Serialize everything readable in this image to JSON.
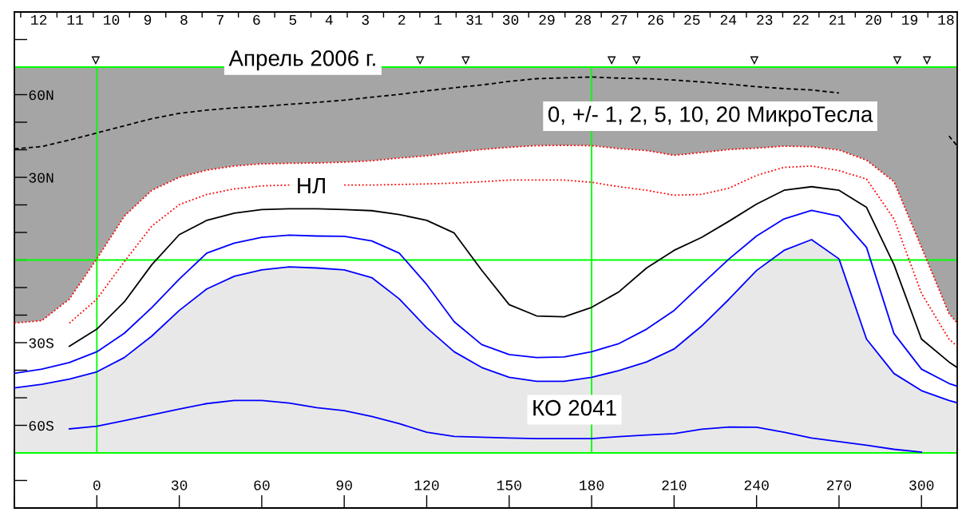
{
  "chart_data": {
    "type": "line",
    "title": "Апрель 2006 г.",
    "subtitle": "0, +/- 1, 2, 5, 10, 20 МикроТесла",
    "annotations": [
      "НЛ",
      "КО 2041"
    ],
    "x": [
      -30,
      -20,
      -10,
      0,
      10,
      20,
      30,
      40,
      50,
      60,
      70,
      80,
      90,
      100,
      110,
      120,
      130,
      140,
      150,
      160,
      170,
      180,
      190,
      200,
      210,
      220,
      230,
      240,
      250,
      260,
      270,
      280,
      290,
      300,
      310,
      313
    ],
    "series": [
      {
        "color": "#000000",
        "line_style": "dashed",
        "values": [
          40.3,
          41.2,
          43.5,
          46.1,
          48.7,
          51.3,
          53.2,
          54.4,
          55.2,
          55.7,
          56.5,
          57.2,
          58.0,
          59.1,
          60.1,
          61.4,
          62.5,
          63.5,
          64.8,
          65.8,
          66.1,
          66.4,
          66.0,
          65.8,
          65.3,
          64.6,
          63.8,
          62.9,
          62.2,
          61.7,
          60.6,
          null,
          null,
          null,
          45.0,
          41.4
        ]
      },
      {
        "color": "#ff0000",
        "line_style": "dotted",
        "values": [
          -22.9,
          -22.0,
          -14.2,
          0.4,
          15.9,
          25.3,
          30.0,
          32.6,
          34.1,
          34.9,
          35.1,
          35.2,
          35.5,
          36.0,
          37.0,
          37.8,
          39.0,
          40.1,
          40.9,
          41.5,
          41.6,
          41.5,
          40.4,
          39.7,
          38.0,
          39.0,
          40.1,
          40.6,
          41.3,
          41.1,
          39.9,
          36.2,
          28.4,
          4.6,
          -19.4,
          -22.9
        ]
      },
      {
        "color": "#ff0000",
        "line_style": "dotted",
        "values": [
          null,
          null,
          -22.9,
          -14.2,
          -0.6,
          12.3,
          20.1,
          23.8,
          25.8,
          26.9,
          27.2,
          null,
          27.2,
          27.2,
          27.4,
          27.6,
          27.9,
          28.4,
          29.0,
          29.0,
          29.0,
          28.2,
          26.6,
          25.3,
          23.5,
          23.8,
          26.1,
          30.7,
          33.6,
          34.1,
          32.4,
          29.4,
          14.9,
          -12.1,
          -28.7,
          -31.3
        ]
      },
      {
        "color": "#000000",
        "line_style": "solid",
        "values": [
          null,
          null,
          -31.3,
          -25.1,
          -15.2,
          -1.7,
          9.2,
          14.4,
          17.0,
          18.3,
          18.6,
          18.6,
          18.3,
          17.9,
          16.5,
          14.4,
          9.8,
          -3.7,
          -16.2,
          -20.3,
          -20.6,
          -17.2,
          -11.5,
          -2.9,
          3.5,
          8.2,
          14.1,
          20.3,
          25.3,
          26.6,
          25.3,
          19.1,
          -1.7,
          -28.7,
          -37.0,
          -39.0
        ]
      },
      {
        "color": "#0000ff",
        "line_style": "solid",
        "values": [
          -41.1,
          -39.6,
          -37.2,
          -33.3,
          -26.6,
          -17.3,
          -6.9,
          2.5,
          6.1,
          8.2,
          9.0,
          8.7,
          8.6,
          6.9,
          2.5,
          -8.9,
          -22.4,
          -30.7,
          -34.3,
          -35.4,
          -35.2,
          -33.3,
          -30.3,
          -25.1,
          -18.3,
          -8.9,
          0.4,
          8.7,
          14.9,
          18.0,
          15.9,
          4.6,
          -26.7,
          -39.6,
          -44.8,
          -45.8
        ]
      },
      {
        "color": "#0000ff",
        "line_style": "solid",
        "values": [
          -46.4,
          -45.1,
          -43.2,
          -40.6,
          -35.4,
          -27.6,
          -18.3,
          -10.5,
          -5.9,
          -3.6,
          -2.5,
          -2.9,
          -3.6,
          -6.4,
          -14.1,
          -24.6,
          -33.3,
          -39.0,
          -42.6,
          -44.0,
          -44.0,
          -42.6,
          -40.1,
          -37.0,
          -32.3,
          -24.0,
          -14.2,
          -3.8,
          3.5,
          7.4,
          0.4,
          -28.7,
          -41.2,
          -47.4,
          -51.0,
          -51.8
        ]
      },
      {
        "color": "#0000ff",
        "line_style": "solid",
        "values": [
          null,
          null,
          -61.3,
          -60.3,
          -58.3,
          -56.2,
          -54.1,
          -52.1,
          -51.0,
          -51.0,
          -51.9,
          -53.6,
          -54.7,
          -56.8,
          -59.4,
          -62.5,
          -64.0,
          -64.3,
          -64.6,
          -64.8,
          -64.8,
          -64.8,
          -64.1,
          -63.5,
          -63.0,
          -61.4,
          -60.6,
          -60.7,
          -62.5,
          -64.6,
          -65.9,
          -67.2,
          -68.7,
          -69.7,
          null,
          null
        ]
      },
      {
        "type": "scatter",
        "color": "#000000",
        "marker": "triangle",
        "x": [
          -0.4,
          117.6,
          134.2,
          187.3,
          196.3,
          239.2,
          291.2,
          302.0
        ],
        "values": [
          72.5,
          72.5,
          72.5,
          72.5,
          72.5,
          72.5,
          72.5,
          72.5
        ]
      }
    ],
    "ref_lines": [
      {
        "axis": "y",
        "value": 70,
        "color": "#00ff00"
      },
      {
        "axis": "y",
        "value": 0,
        "color": "#00ff00"
      },
      {
        "axis": "y",
        "value": -70,
        "color": "#00ff00"
      },
      {
        "axis": "x",
        "value": 0,
        "color": "#00ff00"
      },
      {
        "axis": "x",
        "value": 180,
        "color": "#00ff00"
      }
    ],
    "xlim": [
      -30,
      313
    ],
    "ylim": [
      -90,
      90
    ],
    "xticks": [
      {
        "value": -30,
        "label": null
      },
      0,
      30,
      60,
      90,
      120,
      150,
      180,
      210,
      240,
      270,
      300
    ],
    "yticks": [
      {
        "value": -80,
        "label": null
      },
      {
        "value": -70,
        "label": null
      },
      {
        "value": -60,
        "label": "60S"
      },
      {
        "value": -50,
        "label": null
      },
      {
        "value": -40,
        "label": null
      },
      {
        "value": -30,
        "label": "30S"
      },
      {
        "value": -20,
        "label": null
      },
      {
        "value": -10,
        "label": null
      },
      {
        "value": 0,
        "label": null
      },
      {
        "value": 10,
        "label": null
      },
      {
        "value": 20,
        "label": null
      },
      {
        "value": 30,
        "label": "30N"
      },
      {
        "value": 40,
        "label": null
      },
      {
        "value": 50,
        "label": null
      },
      {
        "value": 60,
        "label": "60N"
      },
      {
        "value": 70,
        "label": null
      },
      {
        "value": 80,
        "label": null
      }
    ],
    "x2lim": [
      "2006-04-13T04:10",
      "2006-03-18T04:35"
    ],
    "x2ticks": [
      {
        "value": "2006-04-13",
        "label": null
      },
      {
        "value": "2006-04-12T12:00",
        "label": "12"
      },
      {
        "value": "2006-04-12",
        "label": null
      },
      {
        "value": "2006-04-11T12:00",
        "label": "11"
      },
      {
        "value": "2006-04-11",
        "label": null
      },
      {
        "value": "2006-04-10T12:00",
        "label": "10"
      },
      {
        "value": "2006-04-10",
        "label": null
      },
      {
        "value": "2006-04-09T12:00",
        "label": "9"
      },
      {
        "value": "2006-04-09",
        "label": null
      },
      {
        "value": "2006-04-08T12:00",
        "label": "8"
      },
      {
        "value": "2006-04-08",
        "label": null
      },
      {
        "value": "2006-04-07T12:00",
        "label": "7"
      },
      {
        "value": "2006-04-07",
        "label": null
      },
      {
        "value": "2006-04-06T12:00",
        "label": "6"
      },
      {
        "value": "2006-04-06",
        "label": null
      },
      {
        "value": "2006-04-05T12:00",
        "label": "5"
      },
      {
        "value": "2006-04-05",
        "label": null
      },
      {
        "value": "2006-04-04T12:00",
        "label": "4"
      },
      {
        "value": "2006-04-04",
        "label": null
      },
      {
        "value": "2006-04-03T12:00",
        "label": "3"
      },
      {
        "value": "2006-04-03",
        "label": null
      },
      {
        "value": "2006-04-02T12:00",
        "label": "2"
      },
      {
        "value": "2006-04-02",
        "label": null
      },
      {
        "value": "2006-04-01T12:00",
        "label": "1"
      },
      {
        "value": "2006-04-01",
        "label": null
      },
      {
        "value": "2006-03-31T12:00",
        "label": "31"
      },
      {
        "value": "2006-03-31",
        "label": null
      },
      {
        "value": "2006-03-30T12:00",
        "label": "30"
      },
      {
        "value": "2006-03-30",
        "label": null
      },
      {
        "value": "2006-03-29T12:00",
        "label": "29"
      },
      {
        "value": "2006-03-29",
        "label": null
      },
      {
        "value": "2006-03-28T12:00",
        "label": "28"
      },
      {
        "value": "2006-03-28",
        "label": null
      },
      {
        "value": "2006-03-27T12:00",
        "label": "27"
      },
      {
        "value": "2006-03-27",
        "label": null
      },
      {
        "value": "2006-03-26T12:00",
        "label": "26"
      },
      {
        "value": "2006-03-26",
        "label": null
      },
      {
        "value": "2006-03-25T12:00",
        "label": "25"
      },
      {
        "value": "2006-03-25",
        "label": null
      },
      {
        "value": "2006-03-24T12:00",
        "label": "24"
      },
      {
        "value": "2006-03-24",
        "label": null
      },
      {
        "value": "2006-03-23T12:00",
        "label": "23"
      },
      {
        "value": "2006-03-23",
        "label": null
      },
      {
        "value": "2006-03-22T12:00",
        "label": "22"
      },
      {
        "value": "2006-03-22",
        "label": null
      },
      {
        "value": "2006-03-21T12:00",
        "label": "21"
      },
      {
        "value": "2006-03-21",
        "label": null
      },
      {
        "value": "2006-03-20T12:00",
        "label": "20"
      },
      {
        "value": "2006-03-20",
        "label": null
      },
      {
        "value": "2006-03-19T12:00",
        "label": "19"
      },
      {
        "value": "2006-03-19",
        "label": null
      },
      {
        "value": "2006-03-18T12:00",
        "label": "18"
      }
    ]
  }
}
